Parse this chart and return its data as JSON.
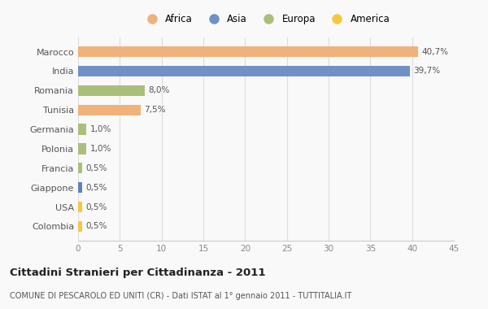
{
  "countries": [
    "Marocco",
    "India",
    "Romania",
    "Tunisia",
    "Germania",
    "Polonia",
    "Francia",
    "Giappone",
    "USA",
    "Colombia"
  ],
  "values": [
    40.7,
    39.7,
    8.0,
    7.5,
    1.0,
    1.0,
    0.5,
    0.5,
    0.5,
    0.5
  ],
  "labels": [
    "40,7%",
    "39,7%",
    "8,0%",
    "7,5%",
    "1,0%",
    "1,0%",
    "0,5%",
    "0,5%",
    "0,5%",
    "0,5%"
  ],
  "colors": [
    "#F0B27A",
    "#7090C8",
    "#AABF7A",
    "#F0B27A",
    "#AABF7A",
    "#AABF7A",
    "#AABF7A",
    "#6080C0",
    "#F5C842",
    "#F5C842"
  ],
  "legend_labels": [
    "Africa",
    "Asia",
    "Europa",
    "America"
  ],
  "legend_colors": [
    "#F0B27A",
    "#7090C8",
    "#AABF7A",
    "#F5C842"
  ],
  "xlim": [
    0,
    45
  ],
  "xticks": [
    0,
    5,
    10,
    15,
    20,
    25,
    30,
    35,
    40,
    45
  ],
  "title": "Cittadini Stranieri per Cittadinanza - 2011",
  "subtitle": "COMUNE DI PESCAROLO ED UNITI (CR) - Dati ISTAT al 1° gennaio 2011 - TUTTITALIA.IT",
  "background_color": "#f9f9f9"
}
